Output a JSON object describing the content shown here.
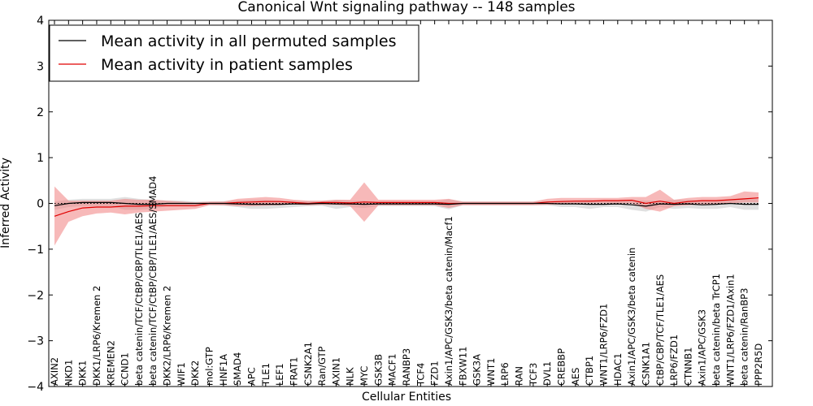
{
  "chart_data": {
    "type": "line",
    "title": "Canonical Wnt signaling pathway -- 148 samples",
    "xlabel": "Cellular Entities",
    "ylabel": "Inferred Activity",
    "ylim": [
      -4,
      4
    ],
    "yticks": [
      {
        "value": 4,
        "label": "4"
      },
      {
        "value": 3,
        "label": "3"
      },
      {
        "value": 2,
        "label": "2"
      },
      {
        "value": 1,
        "label": "1"
      },
      {
        "value": 0,
        "label": "0"
      },
      {
        "value": -1,
        "label": "−1"
      },
      {
        "value": -2,
        "label": "−2"
      },
      {
        "value": -3,
        "label": "−3"
      },
      {
        "value": -4,
        "label": "−4"
      }
    ],
    "legend_position": "top-left",
    "categories": [
      "AXIN2",
      "NKD1",
      "DKK1",
      "DKK1/LRP6/Kremen 2",
      "KREMEN2",
      "CCND1",
      "beta catenin/TCF/CtBP/CBP/TLE1/AES",
      "beta catenin/TCF/CtBP/CBP/TLE1/AES/SMAD4",
      "DKK2/LRP6/Kremen 2",
      "WIF1",
      "DKK2",
      "mol:GTP",
      "HNF1A",
      "SMAD4",
      "APC",
      "TLE1",
      "LEF1",
      "FRAT1",
      "CSNK2A1",
      "Ran/GTP",
      "AXIN1",
      "NLK",
      "MYC",
      "GSK3B",
      "MACF1",
      "RANBP3",
      "TCF4",
      "FZD1",
      "Axin1/APC/GSK3/beta catenin/Macf1",
      "FBXW11",
      "GSK3A",
      "WNT1",
      "LRP6",
      "RAN",
      "TCF3",
      "DVL1",
      "CREBBP",
      "AES",
      "CTBP1",
      "WNT1/LRP6/FZD1",
      "HDAC1",
      "Axin1/APC/GSK3/beta catenin",
      "CSNK1A1",
      "CtBP/CBP/TCF/TLE1/AES",
      "LRP6/FZD1",
      "CTNNB1",
      "Axin1/APC/GSK3",
      "beta catenin/beta TrCP1",
      "WNT1/LRP6/FZD1/Axin1",
      "beta catenin/RanBP3",
      "PPP2R5D"
    ],
    "series": [
      {
        "name": "Mean activity in all permuted samples",
        "color": "#000000",
        "values": [
          -0.05,
          0.0,
          0.02,
          0.02,
          0.02,
          0.0,
          -0.02,
          -0.02,
          0.0,
          0.0,
          0.0,
          0.0,
          0.0,
          -0.01,
          -0.02,
          -0.02,
          -0.02,
          -0.01,
          -0.01,
          0.0,
          -0.01,
          -0.01,
          -0.02,
          -0.01,
          -0.01,
          -0.01,
          -0.01,
          -0.01,
          -0.02,
          0.0,
          0.0,
          0.0,
          0.0,
          0.0,
          0.0,
          0.0,
          -0.01,
          -0.01,
          -0.02,
          -0.02,
          -0.01,
          -0.03,
          -0.06,
          -0.01,
          -0.02,
          -0.01,
          -0.03,
          -0.02,
          0.0,
          -0.02,
          -0.02
        ],
        "band": {
          "color": "#bbbbbb",
          "lower": [
            -0.14,
            -0.08,
            -0.06,
            -0.06,
            -0.06,
            -0.14,
            -0.14,
            -0.12,
            -0.06,
            -0.06,
            -0.04,
            -0.04,
            -0.05,
            -0.08,
            -0.12,
            -0.12,
            -0.1,
            -0.08,
            -0.06,
            -0.05,
            -0.12,
            -0.08,
            -0.1,
            -0.06,
            -0.06,
            -0.06,
            -0.06,
            -0.06,
            -0.13,
            -0.04,
            -0.04,
            -0.04,
            -0.04,
            -0.04,
            -0.04,
            -0.04,
            -0.08,
            -0.08,
            -0.12,
            -0.08,
            -0.08,
            -0.14,
            -0.18,
            -0.08,
            -0.12,
            -0.1,
            -0.12,
            -0.12,
            -0.08,
            -0.14,
            -0.14
          ],
          "upper": [
            0.04,
            0.08,
            0.1,
            0.1,
            0.1,
            0.14,
            0.1,
            0.08,
            0.06,
            0.06,
            0.04,
            0.04,
            0.05,
            0.06,
            0.08,
            0.08,
            0.06,
            0.06,
            0.05,
            0.05,
            0.08,
            0.06,
            0.06,
            0.04,
            0.04,
            0.04,
            0.04,
            0.04,
            0.09,
            0.04,
            0.04,
            0.04,
            0.04,
            0.04,
            0.04,
            0.04,
            0.06,
            0.06,
            0.08,
            0.04,
            0.06,
            0.08,
            0.06,
            0.06,
            0.08,
            0.08,
            0.06,
            0.06,
            0.08,
            0.1,
            0.1
          ]
        }
      },
      {
        "name": "Mean activity in patient samples",
        "color": "#e00000",
        "values": [
          -0.28,
          -0.18,
          -0.1,
          -0.08,
          -0.08,
          -0.06,
          -0.06,
          -0.05,
          -0.05,
          -0.05,
          -0.05,
          0.0,
          0.0,
          0.02,
          0.03,
          0.04,
          0.04,
          0.02,
          0.0,
          0.02,
          0.02,
          0.01,
          0.03,
          0.02,
          0.02,
          0.02,
          0.02,
          0.02,
          0.0,
          0.0,
          0.0,
          0.0,
          0.0,
          0.0,
          0.0,
          0.03,
          0.04,
          0.05,
          0.05,
          0.06,
          0.06,
          0.07,
          0.0,
          0.05,
          0.0,
          0.04,
          0.06,
          0.06,
          0.08,
          0.1,
          0.12
        ],
        "band": {
          "color": "#f08080",
          "lower": [
            -0.92,
            -0.4,
            -0.28,
            -0.22,
            -0.2,
            -0.24,
            -0.2,
            -0.18,
            -0.16,
            -0.14,
            -0.12,
            -0.04,
            -0.04,
            -0.06,
            -0.06,
            -0.05,
            -0.04,
            -0.02,
            -0.04,
            -0.03,
            -0.03,
            -0.06,
            -0.4,
            -0.04,
            -0.04,
            -0.04,
            -0.04,
            -0.04,
            -0.1,
            -0.04,
            -0.04,
            -0.04,
            -0.04,
            -0.04,
            -0.04,
            -0.03,
            -0.02,
            0.0,
            0.0,
            0.0,
            0.0,
            0.0,
            -0.12,
            -0.18,
            -0.06,
            -0.04,
            -0.02,
            -0.02,
            0.0,
            0.02,
            0.02
          ],
          "upper": [
            0.37,
            0.06,
            0.06,
            0.06,
            0.06,
            0.1,
            0.08,
            0.08,
            0.06,
            0.04,
            0.02,
            0.04,
            0.04,
            0.1,
            0.12,
            0.14,
            0.12,
            0.08,
            0.06,
            0.06,
            0.08,
            0.08,
            0.46,
            0.08,
            0.08,
            0.08,
            0.08,
            0.08,
            0.1,
            0.04,
            0.04,
            0.04,
            0.04,
            0.04,
            0.04,
            0.1,
            0.12,
            0.12,
            0.12,
            0.12,
            0.12,
            0.14,
            0.14,
            0.3,
            0.08,
            0.12,
            0.14,
            0.14,
            0.16,
            0.26,
            0.24
          ]
        }
      }
    ]
  }
}
